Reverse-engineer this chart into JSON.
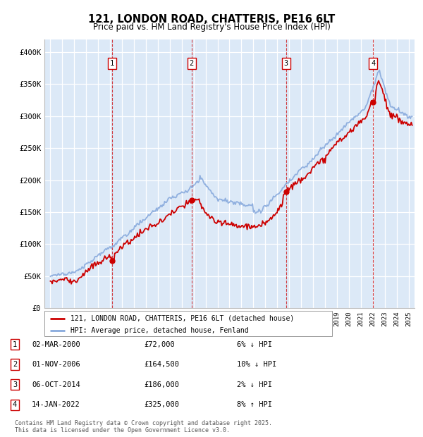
{
  "title": "121, LONDON ROAD, CHATTERIS, PE16 6LT",
  "subtitle": "Price paid vs. HM Land Registry's House Price Index (HPI)",
  "plot_bg_color": "#dce9f7",
  "ylim": [
    0,
    420000
  ],
  "yticks": [
    0,
    50000,
    100000,
    150000,
    200000,
    250000,
    300000,
    350000,
    400000
  ],
  "ytick_labels": [
    "£0",
    "£50K",
    "£100K",
    "£150K",
    "£200K",
    "£250K",
    "£300K",
    "£350K",
    "£400K"
  ],
  "xlim_start": 1994.5,
  "xlim_end": 2025.5,
  "transactions": [
    {
      "num": 1,
      "date_label": "02-MAR-2000",
      "price": 72000,
      "pct": "6%",
      "dir": "↓",
      "year": 2000.17
    },
    {
      "num": 2,
      "date_label": "01-NOV-2006",
      "price": 164500,
      "pct": "10%",
      "dir": "↓",
      "year": 2006.83
    },
    {
      "num": 3,
      "date_label": "06-OCT-2014",
      "price": 186000,
      "pct": "2%",
      "dir": "↓",
      "year": 2014.75
    },
    {
      "num": 4,
      "date_label": "14-JAN-2022",
      "price": 325000,
      "pct": "8%",
      "dir": "↑",
      "year": 2022.04
    }
  ],
  "legend_house": "121, LONDON ROAD, CHATTERIS, PE16 6LT (detached house)",
  "legend_hpi": "HPI: Average price, detached house, Fenland",
  "footer": "Contains HM Land Registry data © Crown copyright and database right 2025.\nThis data is licensed under the Open Government Licence v3.0.",
  "red_color": "#cc0000",
  "blue_color": "#88aadd"
}
